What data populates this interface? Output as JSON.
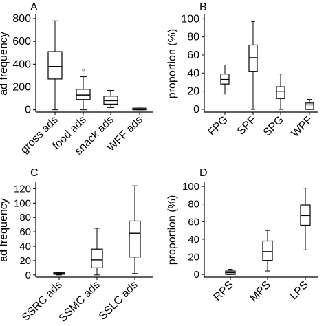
{
  "chart_data": [
    {
      "type": "box",
      "panel_label": "A",
      "ylabel": "ad frequency",
      "ylim": [
        -20,
        830
      ],
      "yticks": [
        0,
        200,
        400,
        600,
        800
      ],
      "categories": [
        "gross ads",
        "food ads",
        "snack ads",
        "WFF ads"
      ],
      "boxes": [
        {
          "min": 0,
          "q1": 270,
          "median": 380,
          "q3": 510,
          "max": 780,
          "outliers": []
        },
        {
          "min": 0,
          "q1": 90,
          "median": 130,
          "q3": 180,
          "max": 290,
          "outliers": [
            350
          ]
        },
        {
          "min": 20,
          "q1": 50,
          "median": 80,
          "q3": 120,
          "max": 170,
          "outliers": []
        },
        {
          "min": 0,
          "q1": 0,
          "median": 5,
          "q3": 15,
          "max": 25,
          "outliers": []
        }
      ],
      "grid": false
    },
    {
      "type": "box",
      "panel_label": "B",
      "ylabel": "proportion (%)",
      "ylim": [
        -3,
        104
      ],
      "yticks": [
        0,
        20,
        40,
        60,
        80,
        100
      ],
      "categories": [
        "FPG",
        "SPF",
        "SPG",
        "WPF"
      ],
      "boxes": [
        {
          "min": 17,
          "q1": 28,
          "median": 33,
          "q3": 39,
          "max": 49,
          "outliers": []
        },
        {
          "min": 0,
          "q1": 42,
          "median": 57,
          "q3": 71,
          "max": 97,
          "outliers": []
        },
        {
          "min": 0,
          "q1": 12,
          "median": 20,
          "q3": 25,
          "max": 39,
          "outliers": []
        },
        {
          "min": 0,
          "q1": 0,
          "median": 5,
          "q3": 7,
          "max": 11,
          "outliers": []
        }
      ],
      "grid": false
    },
    {
      "type": "box",
      "panel_label": "C",
      "ylabel": "ad frequency",
      "ylim": [
        -3,
        128
      ],
      "yticks": [
        0,
        20,
        40,
        60,
        80,
        100,
        120
      ],
      "categories": [
        "SSRC ads",
        "SSMC ads",
        "SSLC ads"
      ],
      "boxes": [
        {
          "min": 0,
          "q1": 1,
          "median": 2,
          "q3": 3,
          "max": 3,
          "outliers": []
        },
        {
          "min": 0,
          "q1": 10,
          "median": 21,
          "q3": 36,
          "max": 65,
          "outliers": []
        },
        {
          "min": 2,
          "q1": 25,
          "median": 58,
          "q3": 75,
          "max": 124,
          "outliers": []
        }
      ],
      "grid": false
    },
    {
      "type": "box",
      "panel_label": "D",
      "ylabel": "proportion (%)",
      "ylim": [
        -3,
        104
      ],
      "yticks": [
        0,
        20,
        40,
        60,
        80,
        100
      ],
      "categories": [
        "RPS",
        "MPS",
        "LPS"
      ],
      "boxes": [
        {
          "min": 0,
          "q1": 0,
          "median": 2,
          "q3": 4,
          "max": 6,
          "outliers": []
        },
        {
          "min": 4,
          "q1": 16,
          "median": 26,
          "q3": 38,
          "max": 50,
          "outliers": []
        },
        {
          "min": 28,
          "q1": 56,
          "median": 67,
          "q3": 79,
          "max": 98,
          "outliers": []
        }
      ],
      "grid": false
    }
  ]
}
